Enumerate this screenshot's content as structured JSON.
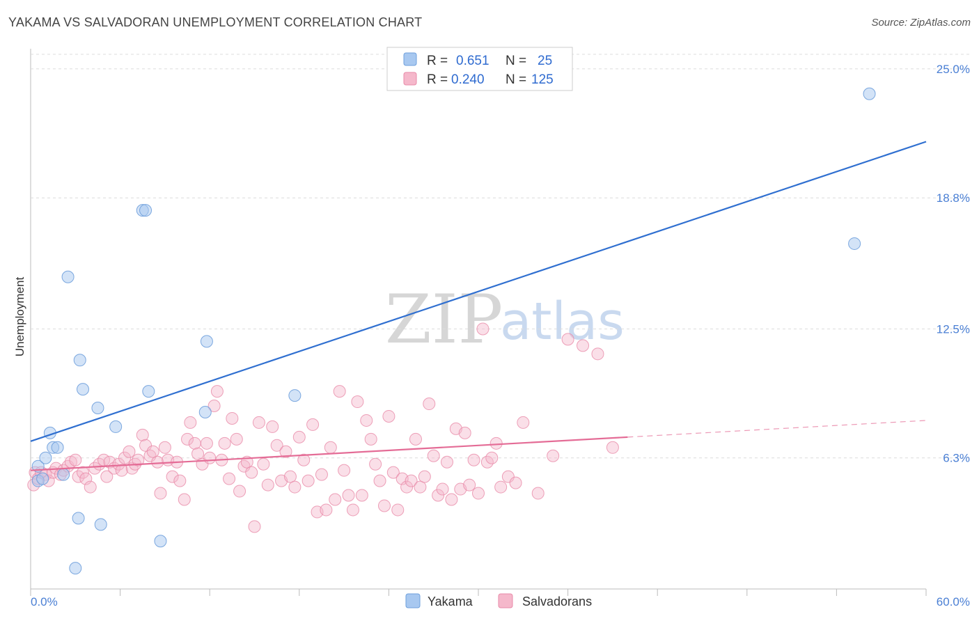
{
  "title": "YAKAMA VS SALVADORAN UNEMPLOYMENT CORRELATION CHART",
  "source": "Source: ZipAtlas.com",
  "watermark": {
    "zip": "ZIP",
    "atlas": "atlas"
  },
  "colors": {
    "yakama": "#a8c8f0",
    "yakama_stroke": "#6e9fdc",
    "yakama_line": "#2f6fd0",
    "salvadoran": "#f5b8cb",
    "salvadoran_stroke": "#e88aa8",
    "salvadoran_line": "#e46c96"
  },
  "legend": {
    "r_label": "R =",
    "n_label": "N =",
    "yakama_r": "0.651",
    "yakama_n": "25",
    "salvadoran_r": "0.240",
    "salvadoran_n": "125"
  },
  "chart_data": {
    "type": "scatter",
    "title": "YAKAMA VS SALVADORAN UNEMPLOYMENT CORRELATION CHART",
    "xlabel": "",
    "ylabel": "Unemployment",
    "xlim": [
      0,
      60
    ],
    "ylim": [
      0,
      25.7
    ],
    "x_tick_labels": [
      "0.0%",
      "60.0%"
    ],
    "y_ticks": [
      6.3,
      12.5,
      18.8,
      25.0
    ],
    "y_tick_labels": [
      "6.3%",
      "12.5%",
      "18.8%",
      "25.0%"
    ],
    "legend_position": "top-center",
    "series": [
      {
        "name": "Yakama",
        "trend": {
          "x0": 0,
          "y0": 7.1,
          "x1": 60,
          "y1": 21.5
        },
        "points": [
          [
            0.5,
            5.9
          ],
          [
            0.5,
            5.2
          ],
          [
            0.8,
            5.3
          ],
          [
            1.0,
            6.3
          ],
          [
            1.3,
            7.5
          ],
          [
            1.5,
            6.8
          ],
          [
            1.8,
            6.8
          ],
          [
            2.2,
            5.5
          ],
          [
            2.5,
            15.0
          ],
          [
            3.0,
            1.0
          ],
          [
            3.2,
            3.4
          ],
          [
            3.3,
            11.0
          ],
          [
            3.5,
            9.6
          ],
          [
            4.5,
            8.7
          ],
          [
            4.7,
            3.1
          ],
          [
            5.7,
            7.8
          ],
          [
            7.5,
            18.2
          ],
          [
            7.7,
            18.2
          ],
          [
            7.9,
            9.5
          ],
          [
            8.7,
            2.3
          ],
          [
            11.7,
            8.5
          ],
          [
            11.8,
            11.9
          ],
          [
            17.7,
            9.3
          ],
          [
            55.2,
            16.6
          ],
          [
            56.2,
            23.8
          ]
        ]
      },
      {
        "name": "Salvadorans",
        "trend": {
          "x0": 0,
          "y0": 5.7,
          "x1": 40,
          "y1": 7.3
        },
        "trend_extension": {
          "x0": 40,
          "y0": 7.3,
          "x1": 60,
          "y1": 8.1
        },
        "points": [
          [
            0.2,
            5.0
          ],
          [
            0.3,
            5.6
          ],
          [
            0.5,
            5.3
          ],
          [
            0.7,
            5.6
          ],
          [
            1.0,
            5.5
          ],
          [
            1.2,
            5.2
          ],
          [
            1.5,
            5.6
          ],
          [
            1.7,
            5.8
          ],
          [
            2.0,
            5.5
          ],
          [
            2.2,
            5.7
          ],
          [
            2.5,
            5.9
          ],
          [
            2.7,
            6.1
          ],
          [
            3.0,
            6.2
          ],
          [
            3.2,
            5.4
          ],
          [
            3.5,
            5.6
          ],
          [
            3.7,
            5.3
          ],
          [
            4.0,
            4.9
          ],
          [
            4.3,
            5.8
          ],
          [
            4.6,
            6.0
          ],
          [
            4.9,
            6.2
          ],
          [
            5.1,
            5.4
          ],
          [
            5.3,
            6.1
          ],
          [
            5.6,
            5.8
          ],
          [
            5.9,
            6.0
          ],
          [
            6.1,
            5.7
          ],
          [
            6.3,
            6.3
          ],
          [
            6.6,
            6.6
          ],
          [
            6.8,
            5.8
          ],
          [
            7.0,
            6.0
          ],
          [
            7.2,
            6.2
          ],
          [
            7.5,
            7.4
          ],
          [
            7.7,
            6.9
          ],
          [
            8.0,
            6.4
          ],
          [
            8.2,
            6.6
          ],
          [
            8.5,
            6.1
          ],
          [
            8.7,
            4.6
          ],
          [
            9.0,
            6.8
          ],
          [
            9.2,
            6.2
          ],
          [
            9.5,
            5.4
          ],
          [
            9.8,
            6.1
          ],
          [
            10.0,
            5.2
          ],
          [
            10.3,
            4.3
          ],
          [
            10.5,
            7.2
          ],
          [
            10.7,
            8.0
          ],
          [
            11.0,
            7.0
          ],
          [
            11.2,
            6.5
          ],
          [
            11.5,
            6.0
          ],
          [
            11.8,
            7.0
          ],
          [
            12.0,
            6.3
          ],
          [
            12.3,
            8.8
          ],
          [
            12.5,
            9.5
          ],
          [
            12.8,
            6.2
          ],
          [
            13.0,
            7.0
          ],
          [
            13.3,
            5.3
          ],
          [
            13.5,
            8.2
          ],
          [
            13.8,
            7.2
          ],
          [
            14.0,
            4.7
          ],
          [
            14.3,
            5.9
          ],
          [
            14.5,
            6.1
          ],
          [
            14.8,
            5.6
          ],
          [
            15.0,
            3.0
          ],
          [
            15.3,
            8.0
          ],
          [
            15.6,
            6.0
          ],
          [
            15.9,
            5.0
          ],
          [
            16.2,
            7.8
          ],
          [
            16.5,
            6.9
          ],
          [
            16.8,
            5.2
          ],
          [
            17.1,
            6.6
          ],
          [
            17.4,
            5.4
          ],
          [
            17.7,
            4.9
          ],
          [
            18.0,
            7.3
          ],
          [
            18.3,
            6.2
          ],
          [
            18.6,
            5.2
          ],
          [
            18.9,
            7.9
          ],
          [
            19.2,
            3.7
          ],
          [
            19.5,
            5.5
          ],
          [
            19.8,
            3.8
          ],
          [
            20.1,
            6.8
          ],
          [
            20.4,
            4.3
          ],
          [
            20.7,
            9.5
          ],
          [
            21.0,
            5.7
          ],
          [
            21.3,
            4.5
          ],
          [
            21.6,
            3.8
          ],
          [
            21.9,
            9.0
          ],
          [
            22.2,
            4.5
          ],
          [
            22.5,
            8.1
          ],
          [
            22.8,
            7.2
          ],
          [
            23.1,
            6.0
          ],
          [
            23.4,
            5.2
          ],
          [
            23.7,
            4.0
          ],
          [
            24.0,
            8.3
          ],
          [
            24.3,
            5.6
          ],
          [
            24.6,
            3.8
          ],
          [
            24.9,
            5.3
          ],
          [
            25.2,
            4.9
          ],
          [
            25.5,
            5.2
          ],
          [
            25.8,
            7.2
          ],
          [
            26.1,
            4.9
          ],
          [
            26.4,
            5.4
          ],
          [
            26.7,
            8.9
          ],
          [
            27.0,
            6.4
          ],
          [
            27.3,
            4.5
          ],
          [
            27.6,
            4.8
          ],
          [
            27.9,
            6.1
          ],
          [
            28.2,
            4.3
          ],
          [
            28.5,
            7.7
          ],
          [
            28.8,
            4.8
          ],
          [
            29.1,
            7.5
          ],
          [
            29.4,
            5.0
          ],
          [
            29.7,
            6.2
          ],
          [
            30.0,
            4.6
          ],
          [
            30.3,
            12.5
          ],
          [
            30.6,
            6.1
          ],
          [
            30.9,
            6.3
          ],
          [
            31.2,
            7.0
          ],
          [
            31.5,
            4.9
          ],
          [
            32.0,
            5.4
          ],
          [
            32.5,
            5.1
          ],
          [
            33.0,
            8.0
          ],
          [
            34.0,
            4.6
          ],
          [
            35.0,
            6.4
          ],
          [
            36.0,
            12.0
          ],
          [
            37.0,
            11.7
          ],
          [
            38.0,
            11.3
          ],
          [
            39.0,
            6.8
          ]
        ]
      }
    ]
  },
  "bottom_legend": {
    "yakama": "Yakama",
    "salvadorans": "Salvadorans"
  }
}
